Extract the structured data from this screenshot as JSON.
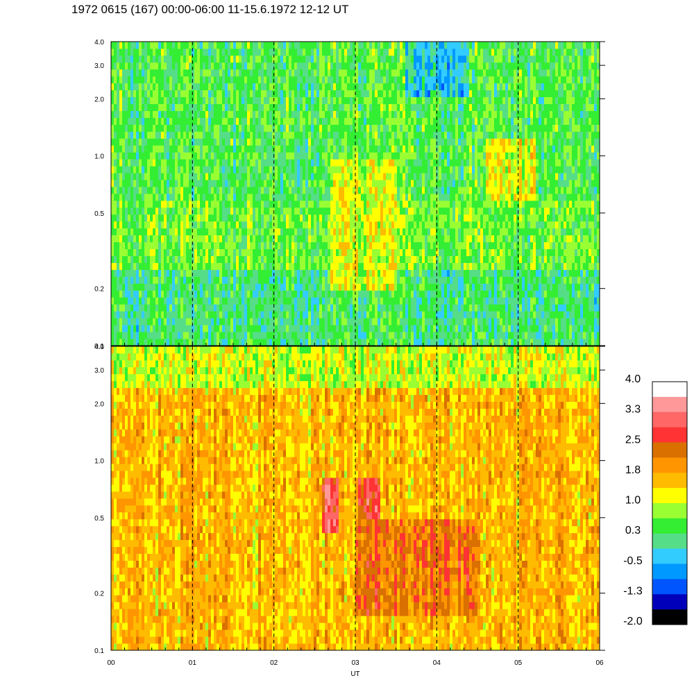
{
  "title": "1972 0615 (167) 00:00-06:00 11-15.6.1972  12-12 UT",
  "chart_data": {
    "type": "heatmap",
    "xlabel": "UT",
    "x_ticks": [
      "00",
      "01",
      "02",
      "03",
      "04",
      "05",
      "06"
    ],
    "x_range": [
      0,
      6
    ],
    "y_scale": "log",
    "y_range": [
      0.1,
      4.0
    ],
    "y_ticks": [
      0.1,
      0.2,
      0.5,
      1.0,
      2.0,
      3.0,
      4.0
    ],
    "y_tick_labels": [
      "0.1",
      "0.2",
      "0.5",
      "1.0",
      "2.0",
      "3.0",
      "4.0"
    ],
    "dashed_gridlines_at_hours": [
      1,
      2,
      3,
      4,
      5
    ],
    "panels": [
      {
        "name": "",
        "dominant_levels": "approx. 0.0 to 1.2",
        "regions": [
          {
            "x": [
              0,
              6
            ],
            "y": [
              0.1,
              0.25
            ],
            "level": 0.2
          },
          {
            "x": [
              0,
              6
            ],
            "y": [
              0.25,
              0.6
            ],
            "level": 0.6
          },
          {
            "x": [
              0,
              6
            ],
            "y": [
              0.6,
              4.0
            ],
            "level": 0.4
          },
          {
            "x": [
              2.7,
              3.5
            ],
            "y": [
              0.2,
              1.0
            ],
            "level": 1.0
          },
          {
            "x": [
              4.6,
              5.2
            ],
            "y": [
              0.6,
              1.2
            ],
            "level": 1.1
          },
          {
            "x": [
              3.6,
              4.4
            ],
            "y": [
              2.0,
              4.0
            ],
            "level": -0.3
          }
        ]
      },
      {
        "name": "",
        "dominant_levels": "approx. 1.0 to 3.0",
        "regions": [
          {
            "x": [
              0,
              6
            ],
            "y": [
              0.1,
              4.0
            ],
            "level": 1.6
          },
          {
            "x": [
              0,
              6
            ],
            "y": [
              2.5,
              4.0
            ],
            "level": 1.0
          },
          {
            "x": [
              2.6,
              2.8
            ],
            "y": [
              0.4,
              0.8
            ],
            "level": 3.0
          },
          {
            "x": [
              3.05,
              3.3
            ],
            "y": [
              0.35,
              0.8
            ],
            "level": 2.6
          },
          {
            "x": [
              3.0,
              4.5
            ],
            "y": [
              0.15,
              0.5
            ],
            "level": 2.2
          }
        ]
      }
    ],
    "colorbar": {
      "tick_labels": [
        "4.0",
        "3.3",
        "2.5",
        "1.8",
        "1.0",
        "0.3",
        "-0.5",
        "-1.3",
        "-2.0"
      ],
      "min": -2.0,
      "max": 4.0,
      "colors_top_to_bottom": [
        "#ffffff",
        "#ff9999",
        "#ff6666",
        "#ff3333",
        "#d97000",
        "#ff9500",
        "#ffbb00",
        "#ffff00",
        "#99ff33",
        "#33ee33",
        "#55dd88",
        "#33ccff",
        "#0099ff",
        "#0055ff",
        "#0000bb",
        "#000000"
      ]
    }
  }
}
